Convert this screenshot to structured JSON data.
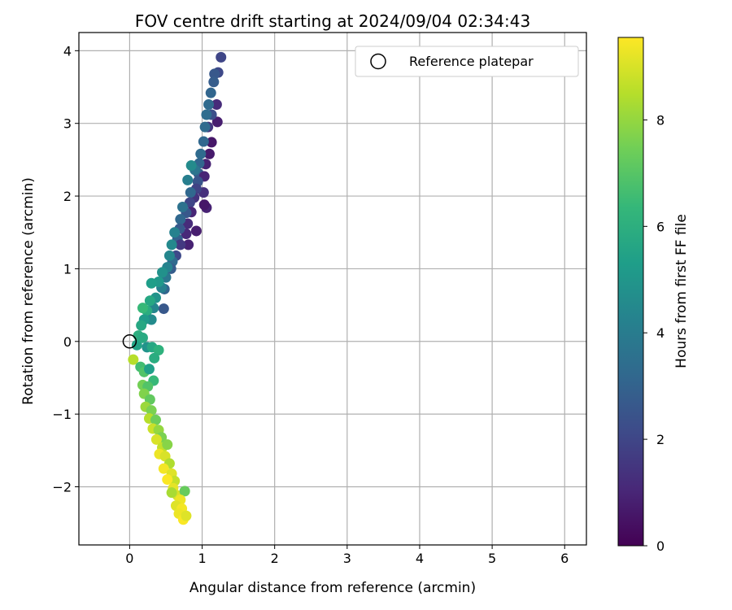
{
  "chart_data": {
    "type": "scatter",
    "title": "FOV centre drift starting at 2024/09/04 02:34:43",
    "xlabel": "Angular distance from reference (arcmin)",
    "ylabel": "Rotation from reference (arcmin)",
    "xlim": [
      -0.7,
      6.3
    ],
    "ylim": [
      -2.8,
      4.25
    ],
    "xticks": [
      0,
      1,
      2,
      3,
      4,
      5,
      6
    ],
    "yticks": [
      -2,
      -1,
      0,
      1,
      2,
      3,
      4
    ],
    "grid": true,
    "legend": {
      "location": "top-right",
      "entries": [
        "Reference platepar"
      ]
    },
    "reference_point": {
      "x": 0,
      "y": 0
    },
    "colorbar": {
      "label": "Hours from first FF file",
      "range": [
        0,
        9.55
      ],
      "ticks": [
        0,
        2,
        4,
        6,
        8
      ],
      "colormap": [
        "#440154",
        "#482878",
        "#3e4a89",
        "#31688e",
        "#26828e",
        "#1f9e89",
        "#35b779",
        "#6ece58",
        "#b5de2b",
        "#fde725"
      ]
    },
    "points": [
      {
        "x": 1.26,
        "y": 3.91,
        "c": 2.0
      },
      {
        "x": 1.22,
        "y": 3.7,
        "c": 2.1
      },
      {
        "x": 1.17,
        "y": 3.68,
        "c": 2.6
      },
      {
        "x": 1.16,
        "y": 3.57,
        "c": 2.8
      },
      {
        "x": 1.12,
        "y": 3.42,
        "c": 3.1
      },
      {
        "x": 1.2,
        "y": 3.26,
        "c": 1.2
      },
      {
        "x": 1.21,
        "y": 3.02,
        "c": 0.8
      },
      {
        "x": 1.13,
        "y": 3.12,
        "c": 2.3
      },
      {
        "x": 1.09,
        "y": 3.26,
        "c": 3.3
      },
      {
        "x": 1.06,
        "y": 3.12,
        "c": 3.4
      },
      {
        "x": 1.08,
        "y": 2.95,
        "c": 1.5
      },
      {
        "x": 1.13,
        "y": 2.74,
        "c": 0.6
      },
      {
        "x": 1.04,
        "y": 2.95,
        "c": 3.3
      },
      {
        "x": 1.02,
        "y": 2.75,
        "c": 3.2
      },
      {
        "x": 1.1,
        "y": 2.58,
        "c": 0.7
      },
      {
        "x": 1.05,
        "y": 2.44,
        "c": 0.9
      },
      {
        "x": 0.98,
        "y": 2.58,
        "c": 3.3
      },
      {
        "x": 0.96,
        "y": 2.45,
        "c": 3.1
      },
      {
        "x": 0.95,
        "y": 2.31,
        "c": 2.8
      },
      {
        "x": 1.03,
        "y": 2.27,
        "c": 1.0
      },
      {
        "x": 0.94,
        "y": 2.2,
        "c": 2.5
      },
      {
        "x": 0.9,
        "y": 2.36,
        "c": 3.7
      },
      {
        "x": 0.85,
        "y": 2.42,
        "c": 4.6
      },
      {
        "x": 1.02,
        "y": 2.05,
        "c": 1.3
      },
      {
        "x": 0.92,
        "y": 2.1,
        "c": 1.9
      },
      {
        "x": 0.89,
        "y": 1.98,
        "c": 1.4
      },
      {
        "x": 1.06,
        "y": 1.84,
        "c": 0.9
      },
      {
        "x": 1.03,
        "y": 1.88,
        "c": 0.6
      },
      {
        "x": 0.84,
        "y": 2.05,
        "c": 3.2
      },
      {
        "x": 0.83,
        "y": 1.91,
        "c": 2.0
      },
      {
        "x": 0.8,
        "y": 2.22,
        "c": 4.1
      },
      {
        "x": 0.85,
        "y": 1.78,
        "c": 1.0
      },
      {
        "x": 0.78,
        "y": 1.77,
        "c": 2.6
      },
      {
        "x": 0.92,
        "y": 1.52,
        "c": 0.8
      },
      {
        "x": 0.8,
        "y": 1.62,
        "c": 1.2
      },
      {
        "x": 0.73,
        "y": 1.85,
        "c": 3.6
      },
      {
        "x": 0.7,
        "y": 1.68,
        "c": 3.2
      },
      {
        "x": 0.78,
        "y": 1.48,
        "c": 1.1
      },
      {
        "x": 0.69,
        "y": 1.55,
        "c": 2.7
      },
      {
        "x": 0.81,
        "y": 1.33,
        "c": 0.9
      },
      {
        "x": 0.66,
        "y": 1.41,
        "c": 2.9
      },
      {
        "x": 0.7,
        "y": 1.33,
        "c": 1.6
      },
      {
        "x": 0.62,
        "y": 1.5,
        "c": 4.2
      },
      {
        "x": 0.58,
        "y": 1.33,
        "c": 4.5
      },
      {
        "x": 0.64,
        "y": 1.18,
        "c": 2.1
      },
      {
        "x": 0.59,
        "y": 1.1,
        "c": 3.3
      },
      {
        "x": 0.55,
        "y": 1.18,
        "c": 4.4
      },
      {
        "x": 0.57,
        "y": 1.0,
        "c": 2.8
      },
      {
        "x": 0.52,
        "y": 1.02,
        "c": 4.3
      },
      {
        "x": 0.5,
        "y": 0.88,
        "c": 3.8
      },
      {
        "x": 0.45,
        "y": 0.95,
        "c": 4.8
      },
      {
        "x": 0.48,
        "y": 0.72,
        "c": 3.1
      },
      {
        "x": 0.44,
        "y": 0.74,
        "c": 4.2
      },
      {
        "x": 0.4,
        "y": 0.82,
        "c": 5.1
      },
      {
        "x": 0.47,
        "y": 0.45,
        "c": 2.6
      },
      {
        "x": 0.36,
        "y": 0.6,
        "c": 4.9
      },
      {
        "x": 0.3,
        "y": 0.8,
        "c": 5.3
      },
      {
        "x": 0.33,
        "y": 0.46,
        "c": 4.4
      },
      {
        "x": 0.28,
        "y": 0.56,
        "c": 5.7
      },
      {
        "x": 0.24,
        "y": 0.42,
        "c": 5.9
      },
      {
        "x": 0.3,
        "y": 0.3,
        "c": 4.6
      },
      {
        "x": 0.18,
        "y": 0.46,
        "c": 6.4
      },
      {
        "x": 0.2,
        "y": 0.3,
        "c": 5.2
      },
      {
        "x": 0.16,
        "y": 0.22,
        "c": 5.7
      },
      {
        "x": 0.12,
        "y": 0.08,
        "c": 6.0
      },
      {
        "x": 0.1,
        "y": -0.05,
        "c": 5.5
      },
      {
        "x": 0.18,
        "y": 0.05,
        "c": 5.8
      },
      {
        "x": 0.24,
        "y": -0.08,
        "c": 4.9
      },
      {
        "x": 0.31,
        "y": -0.08,
        "c": 5.7
      },
      {
        "x": 0.4,
        "y": -0.12,
        "c": 6.1
      },
      {
        "x": 0.34,
        "y": -0.23,
        "c": 5.9
      },
      {
        "x": 0.05,
        "y": -0.25,
        "c": 8.5
      },
      {
        "x": 0.15,
        "y": -0.35,
        "c": 6.6
      },
      {
        "x": 0.2,
        "y": -0.42,
        "c": 6.9
      },
      {
        "x": 0.27,
        "y": -0.38,
        "c": 5.4
      },
      {
        "x": 0.33,
        "y": -0.54,
        "c": 6.4
      },
      {
        "x": 0.18,
        "y": -0.6,
        "c": 7.5
      },
      {
        "x": 0.25,
        "y": -0.62,
        "c": 6.9
      },
      {
        "x": 0.2,
        "y": -0.72,
        "c": 7.7
      },
      {
        "x": 0.28,
        "y": -0.8,
        "c": 7.2
      },
      {
        "x": 0.22,
        "y": -0.9,
        "c": 8.1
      },
      {
        "x": 0.3,
        "y": -0.95,
        "c": 7.6
      },
      {
        "x": 0.27,
        "y": -1.06,
        "c": 8.5
      },
      {
        "x": 0.36,
        "y": -1.08,
        "c": 7.4
      },
      {
        "x": 0.32,
        "y": -1.2,
        "c": 8.8
      },
      {
        "x": 0.4,
        "y": -1.22,
        "c": 8.0
      },
      {
        "x": 0.44,
        "y": -1.32,
        "c": 7.6
      },
      {
        "x": 0.37,
        "y": -1.35,
        "c": 9.0
      },
      {
        "x": 0.45,
        "y": -1.46,
        "c": 8.7
      },
      {
        "x": 0.52,
        "y": -1.42,
        "c": 7.8
      },
      {
        "x": 0.41,
        "y": -1.55,
        "c": 9.3
      },
      {
        "x": 0.49,
        "y": -1.58,
        "c": 9.0
      },
      {
        "x": 0.55,
        "y": -1.68,
        "c": 8.4
      },
      {
        "x": 0.47,
        "y": -1.75,
        "c": 9.4
      },
      {
        "x": 0.58,
        "y": -1.82,
        "c": 9.1
      },
      {
        "x": 0.62,
        "y": -1.92,
        "c": 8.7
      },
      {
        "x": 0.52,
        "y": -1.9,
        "c": 9.5
      },
      {
        "x": 0.6,
        "y": -2.02,
        "c": 9.2
      },
      {
        "x": 0.66,
        "y": -2.12,
        "c": 9.0
      },
      {
        "x": 0.58,
        "y": -2.08,
        "c": 8.3
      },
      {
        "x": 0.76,
        "y": -2.06,
        "c": 7.3
      },
      {
        "x": 0.7,
        "y": -2.18,
        "c": 9.3
      },
      {
        "x": 0.64,
        "y": -2.26,
        "c": 9.1
      },
      {
        "x": 0.72,
        "y": -2.3,
        "c": 9.4
      },
      {
        "x": 0.68,
        "y": -2.37,
        "c": 9.3
      },
      {
        "x": 0.74,
        "y": -2.45,
        "c": 9.5
      },
      {
        "x": 0.78,
        "y": -2.4,
        "c": 9.1
      }
    ]
  }
}
